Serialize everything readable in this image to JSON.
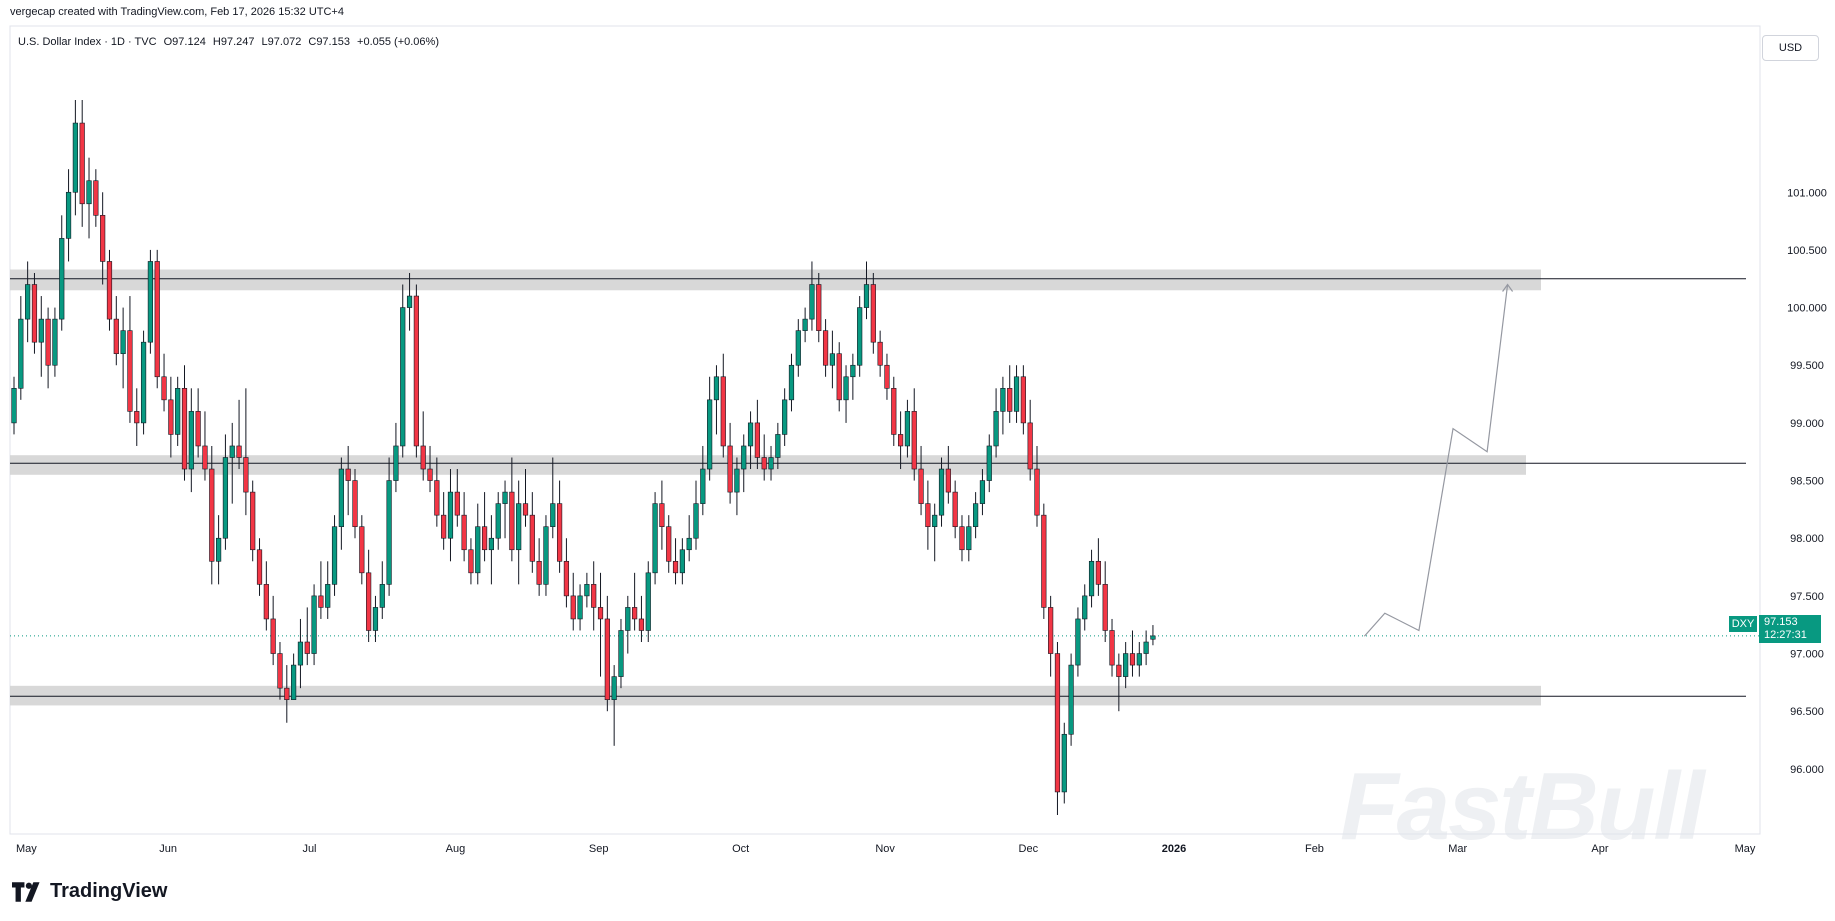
{
  "caption": "vergecap created with TradingView.com, Feb 17, 2026 15:32 UTC+4",
  "legend": {
    "symbol": "U.S. Dollar Index · 1D · TVC",
    "open": "O97.124",
    "high": "H97.247",
    "low": "L97.072",
    "close": "C97.153",
    "change": "+0.055 (+0.06%)"
  },
  "currency_button": "USD",
  "last_price": {
    "symbol": "DXY",
    "price": "97.153",
    "countdown": "12:27:31",
    "value": 97.153
  },
  "brand": "TradingView",
  "watermark": "FastBull",
  "colors": {
    "up": "#089981",
    "down": "#f23645",
    "zone": "#d4d4d4",
    "last": "#089981"
  },
  "chart_data": {
    "type": "candlestick",
    "ylim": [
      95.6,
      101.8
    ],
    "y_ticks": [
      96.0,
      96.5,
      97.0,
      97.5,
      98.0,
      98.5,
      99.0,
      99.5,
      100.0,
      100.5,
      101.0
    ],
    "y_tick_labels": [
      "96.000",
      "96.500",
      "97.000",
      "97.500",
      "98.000",
      "98.500",
      "99.000",
      "99.500",
      "100.000",
      "100.500",
      "101.000"
    ],
    "x_labels": [
      "May",
      "Jun",
      "Jul",
      "Aug",
      "Sep",
      "Oct",
      "Nov",
      "Dec",
      "2026",
      "Feb",
      "Mar",
      "Apr",
      "May"
    ],
    "x_label_index": [
      0,
      21,
      42,
      63,
      84,
      105,
      126,
      147,
      168,
      189,
      210,
      231,
      252
    ],
    "zones": [
      {
        "low": 100.15,
        "high": 100.33,
        "line": 100.25
      },
      {
        "low": 98.55,
        "high": 98.72,
        "line": 98.65
      },
      {
        "low": 96.55,
        "high": 96.72,
        "line": 96.63
      }
    ],
    "projection_path": [
      {
        "i": 198,
        "v": 97.15
      },
      {
        "i": 201,
        "v": 97.35
      },
      {
        "i": 206,
        "v": 97.2
      },
      {
        "i": 211,
        "v": 98.95
      },
      {
        "i": 216,
        "v": 98.75
      },
      {
        "i": 219,
        "v": 100.2
      }
    ],
    "last_value": 97.153,
    "candles": [
      [
        99.0,
        99.4,
        98.9,
        99.3
      ],
      [
        99.3,
        100.1,
        99.2,
        99.9
      ],
      [
        99.9,
        100.4,
        99.7,
        100.2
      ],
      [
        100.2,
        100.3,
        99.6,
        99.7
      ],
      [
        99.7,
        100.1,
        99.4,
        99.9
      ],
      [
        99.9,
        100.0,
        99.3,
        99.5
      ],
      [
        99.5,
        100.0,
        99.4,
        99.9
      ],
      [
        99.9,
        100.8,
        99.8,
        100.6
      ],
      [
        100.6,
        101.2,
        100.4,
        101.0
      ],
      [
        101.0,
        101.8,
        100.8,
        101.6
      ],
      [
        101.6,
        101.8,
        100.7,
        100.9
      ],
      [
        100.9,
        101.3,
        100.6,
        101.1
      ],
      [
        101.1,
        101.2,
        100.7,
        100.8
      ],
      [
        100.8,
        101.0,
        100.2,
        100.4
      ],
      [
        100.4,
        100.5,
        99.8,
        99.9
      ],
      [
        99.9,
        100.1,
        99.5,
        99.6
      ],
      [
        99.6,
        100.0,
        99.3,
        99.8
      ],
      [
        99.8,
        100.1,
        99.0,
        99.1
      ],
      [
        99.1,
        99.3,
        98.8,
        99.0
      ],
      [
        99.0,
        99.8,
        98.9,
        99.7
      ],
      [
        99.7,
        100.5,
        99.6,
        100.4
      ],
      [
        100.4,
        100.5,
        99.3,
        99.4
      ],
      [
        99.4,
        99.6,
        99.1,
        99.2
      ],
      [
        99.2,
        99.4,
        98.7,
        98.9
      ],
      [
        98.9,
        99.4,
        98.8,
        99.3
      ],
      [
        99.3,
        99.5,
        98.5,
        98.6
      ],
      [
        98.6,
        99.3,
        98.4,
        99.1
      ],
      [
        99.1,
        99.3,
        98.7,
        98.8
      ],
      [
        98.8,
        99.1,
        98.5,
        98.6
      ],
      [
        98.6,
        98.8,
        97.6,
        97.8
      ],
      [
        97.8,
        98.2,
        97.6,
        98.0
      ],
      [
        98.0,
        98.9,
        97.9,
        98.7
      ],
      [
        98.7,
        99.0,
        98.3,
        98.8
      ],
      [
        98.8,
        99.2,
        98.6,
        98.7
      ],
      [
        98.7,
        99.3,
        98.2,
        98.4
      ],
      [
        98.4,
        98.5,
        97.8,
        97.9
      ],
      [
        97.9,
        98.0,
        97.5,
        97.6
      ],
      [
        97.6,
        97.8,
        97.2,
        97.3
      ],
      [
        97.3,
        97.5,
        96.9,
        97.0
      ],
      [
        97.0,
        97.1,
        96.6,
        96.7
      ],
      [
        96.7,
        96.9,
        96.4,
        96.6
      ],
      [
        96.6,
        97.0,
        96.6,
        96.9
      ],
      [
        96.9,
        97.3,
        96.7,
        97.1
      ],
      [
        97.1,
        97.4,
        96.9,
        97.0
      ],
      [
        97.0,
        97.6,
        96.9,
        97.5
      ],
      [
        97.5,
        97.8,
        97.3,
        97.4
      ],
      [
        97.4,
        97.8,
        97.3,
        97.6
      ],
      [
        97.6,
        98.2,
        97.5,
        98.1
      ],
      [
        98.1,
        98.7,
        97.9,
        98.6
      ],
      [
        98.6,
        98.8,
        98.2,
        98.5
      ],
      [
        98.5,
        98.6,
        98.0,
        98.1
      ],
      [
        98.1,
        98.2,
        97.6,
        97.7
      ],
      [
        97.7,
        97.9,
        97.1,
        97.2
      ],
      [
        97.2,
        97.5,
        97.1,
        97.4
      ],
      [
        97.4,
        97.8,
        97.3,
        97.6
      ],
      [
        97.6,
        98.7,
        97.5,
        98.5
      ],
      [
        98.5,
        99.0,
        98.4,
        98.8
      ],
      [
        98.8,
        100.2,
        98.7,
        100.0
      ],
      [
        100.0,
        100.3,
        99.8,
        100.1
      ],
      [
        100.1,
        100.2,
        98.7,
        98.8
      ],
      [
        98.8,
        99.1,
        98.5,
        98.6
      ],
      [
        98.6,
        98.8,
        98.4,
        98.5
      ],
      [
        98.5,
        98.7,
        98.1,
        98.2
      ],
      [
        98.2,
        98.4,
        97.9,
        98.0
      ],
      [
        98.0,
        98.6,
        97.8,
        98.4
      ],
      [
        98.4,
        98.6,
        98.1,
        98.2
      ],
      [
        98.2,
        98.4,
        97.8,
        97.9
      ],
      [
        97.9,
        98.0,
        97.6,
        97.7
      ],
      [
        97.7,
        98.3,
        97.6,
        98.1
      ],
      [
        98.1,
        98.4,
        97.8,
        97.9
      ],
      [
        97.9,
        98.2,
        97.6,
        98.0
      ],
      [
        98.0,
        98.4,
        97.9,
        98.3
      ],
      [
        98.3,
        98.5,
        98.0,
        98.4
      ],
      [
        98.4,
        98.7,
        97.8,
        97.9
      ],
      [
        97.9,
        98.5,
        97.6,
        98.3
      ],
      [
        98.3,
        98.6,
        98.1,
        98.2
      ],
      [
        98.2,
        98.4,
        97.7,
        97.8
      ],
      [
        97.8,
        98.0,
        97.5,
        97.6
      ],
      [
        97.6,
        98.2,
        97.5,
        98.1
      ],
      [
        98.1,
        98.7,
        98.0,
        98.3
      ],
      [
        98.3,
        98.5,
        97.7,
        97.8
      ],
      [
        97.8,
        98.0,
        97.4,
        97.5
      ],
      [
        97.5,
        97.7,
        97.2,
        97.3
      ],
      [
        97.3,
        97.6,
        97.2,
        97.5
      ],
      [
        97.5,
        97.7,
        97.4,
        97.6
      ],
      [
        97.6,
        97.8,
        97.2,
        97.4
      ],
      [
        97.4,
        97.7,
        96.8,
        97.3
      ],
      [
        97.3,
        97.5,
        96.5,
        96.6
      ],
      [
        96.6,
        96.9,
        96.2,
        96.8
      ],
      [
        96.8,
        97.3,
        96.7,
        97.2
      ],
      [
        97.2,
        97.5,
        97.0,
        97.4
      ],
      [
        97.4,
        97.7,
        97.2,
        97.3
      ],
      [
        97.3,
        97.5,
        97.1,
        97.2
      ],
      [
        97.2,
        97.8,
        97.1,
        97.7
      ],
      [
        97.7,
        98.4,
        97.6,
        98.3
      ],
      [
        98.3,
        98.5,
        97.9,
        98.1
      ],
      [
        98.1,
        98.2,
        97.7,
        97.8
      ],
      [
        97.8,
        98.0,
        97.6,
        97.7
      ],
      [
        97.7,
        98.0,
        97.6,
        97.9
      ],
      [
        97.9,
        98.2,
        97.8,
        98.0
      ],
      [
        98.0,
        98.5,
        97.9,
        98.3
      ],
      [
        98.3,
        98.8,
        98.2,
        98.6
      ],
      [
        98.6,
        99.4,
        98.5,
        99.2
      ],
      [
        99.2,
        99.5,
        98.9,
        99.4
      ],
      [
        99.4,
        99.6,
        98.7,
        98.8
      ],
      [
        98.8,
        99.0,
        98.3,
        98.4
      ],
      [
        98.4,
        98.7,
        98.2,
        98.6
      ],
      [
        98.6,
        98.9,
        98.4,
        98.8
      ],
      [
        98.8,
        99.1,
        98.6,
        99.0
      ],
      [
        99.0,
        99.2,
        98.6,
        98.7
      ],
      [
        98.7,
        98.9,
        98.5,
        98.6
      ],
      [
        98.6,
        98.8,
        98.5,
        98.7
      ],
      [
        98.7,
        99.0,
        98.6,
        98.9
      ],
      [
        98.9,
        99.3,
        98.8,
        99.2
      ],
      [
        99.2,
        99.6,
        99.1,
        99.5
      ],
      [
        99.5,
        99.9,
        99.4,
        99.8
      ],
      [
        99.8,
        100.0,
        99.7,
        99.9
      ],
      [
        99.9,
        100.4,
        99.8,
        100.2
      ],
      [
        100.2,
        100.3,
        99.7,
        99.8
      ],
      [
        99.8,
        99.9,
        99.4,
        99.5
      ],
      [
        99.5,
        99.8,
        99.3,
        99.6
      ],
      [
        99.6,
        99.7,
        99.1,
        99.2
      ],
      [
        99.2,
        99.5,
        99.0,
        99.4
      ],
      [
        99.4,
        99.6,
        99.2,
        99.5
      ],
      [
        99.5,
        100.1,
        99.4,
        100.0
      ],
      [
        100.0,
        100.4,
        99.9,
        100.2
      ],
      [
        100.2,
        100.3,
        99.6,
        99.7
      ],
      [
        99.7,
        99.8,
        99.4,
        99.5
      ],
      [
        99.5,
        99.6,
        99.2,
        99.3
      ],
      [
        99.3,
        99.4,
        98.8,
        98.9
      ],
      [
        98.9,
        99.1,
        98.6,
        98.8
      ],
      [
        98.8,
        99.2,
        98.7,
        99.1
      ],
      [
        99.1,
        99.3,
        98.5,
        98.6
      ],
      [
        98.6,
        98.8,
        98.2,
        98.3
      ],
      [
        98.3,
        98.5,
        97.9,
        98.1
      ],
      [
        98.1,
        98.3,
        97.8,
        98.2
      ],
      [
        98.2,
        98.7,
        98.1,
        98.6
      ],
      [
        98.6,
        98.8,
        98.3,
        98.4
      ],
      [
        98.4,
        98.5,
        98.0,
        98.1
      ],
      [
        98.1,
        98.2,
        97.8,
        97.9
      ],
      [
        97.9,
        98.2,
        97.8,
        98.1
      ],
      [
        98.1,
        98.4,
        98.0,
        98.3
      ],
      [
        98.3,
        98.6,
        98.2,
        98.5
      ],
      [
        98.5,
        98.9,
        98.4,
        98.8
      ],
      [
        98.8,
        99.3,
        98.7,
        99.1
      ],
      [
        99.1,
        99.4,
        98.9,
        99.3
      ],
      [
        99.3,
        99.5,
        99.0,
        99.1
      ],
      [
        99.1,
        99.5,
        99.0,
        99.4
      ],
      [
        99.4,
        99.5,
        98.9,
        99.0
      ],
      [
        99.0,
        99.2,
        98.5,
        98.6
      ],
      [
        98.6,
        98.8,
        98.1,
        98.2
      ],
      [
        98.2,
        98.3,
        97.3,
        97.4
      ],
      [
        97.4,
        97.5,
        96.8,
        97.0
      ],
      [
        97.0,
        97.1,
        95.6,
        95.8
      ],
      [
        95.8,
        96.4,
        95.7,
        96.3
      ],
      [
        96.3,
        97.0,
        96.2,
        96.9
      ],
      [
        96.9,
        97.4,
        96.8,
        97.3
      ],
      [
        97.3,
        97.6,
        97.2,
        97.5
      ],
      [
        97.5,
        97.9,
        97.4,
        97.8
      ],
      [
        97.8,
        98.0,
        97.5,
        97.6
      ],
      [
        97.6,
        97.8,
        97.1,
        97.2
      ],
      [
        97.2,
        97.3,
        96.8,
        96.9
      ],
      [
        96.9,
        97.0,
        96.5,
        96.8
      ],
      [
        96.8,
        97.1,
        96.7,
        97.0
      ],
      [
        97.0,
        97.2,
        96.8,
        96.9
      ],
      [
        96.9,
        97.1,
        96.8,
        97.0
      ],
      [
        97.0,
        97.2,
        96.9,
        97.1
      ],
      [
        97.124,
        97.247,
        97.072,
        97.153
      ]
    ]
  }
}
